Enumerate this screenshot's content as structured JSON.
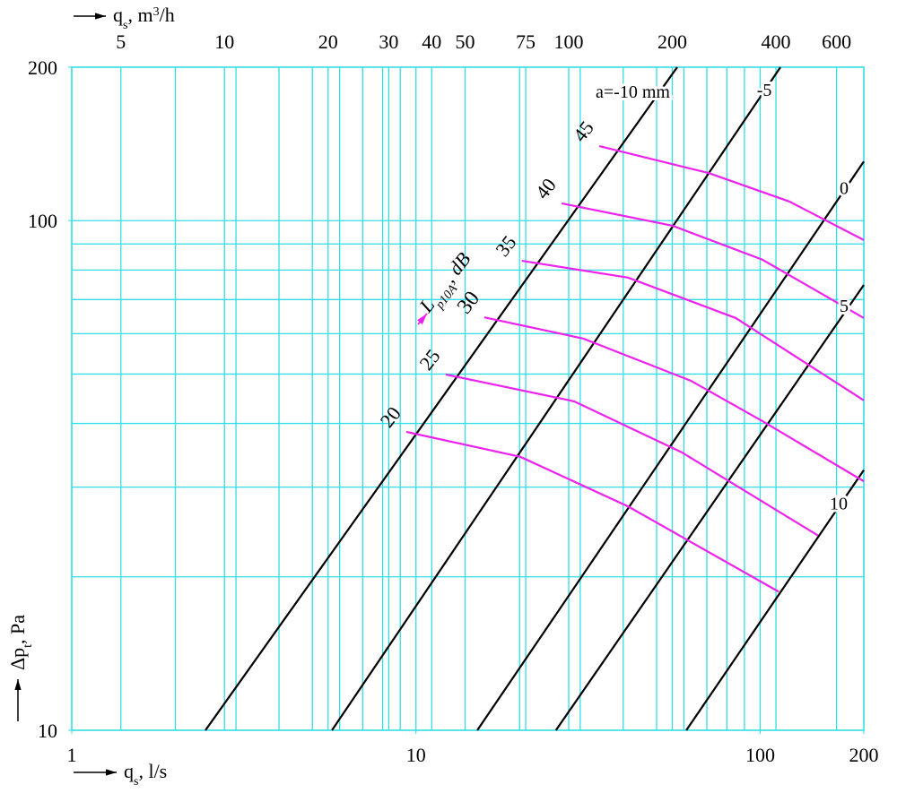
{
  "chart_data": {
    "type": "line",
    "xscale": "log",
    "yscale": "log",
    "xlim": [
      1,
      200
    ],
    "ylim": [
      10,
      200
    ],
    "x2lim": [
      3.6,
      720
    ],
    "xticks": [
      1,
      10,
      100,
      200
    ],
    "x2ticks": [
      5,
      10,
      20,
      30,
      40,
      50,
      75,
      100,
      200,
      400,
      600
    ],
    "yticks": [
      10,
      100,
      200
    ],
    "xgrid": [
      2,
      3,
      4,
      5,
      6,
      7,
      8,
      9,
      10,
      20,
      30,
      40,
      50,
      60,
      70,
      80,
      90,
      100
    ],
    "ygrid": [
      20,
      30,
      40,
      50,
      60,
      70,
      80,
      90,
      100
    ],
    "grid_color": "#33dde6",
    "x_label": {
      "main": "q",
      "sub": "s",
      "rest": ", l/s"
    },
    "x2_label": {
      "main": "q",
      "sub": "s",
      "rest": ", m",
      "sup": "3",
      "tail": "/h"
    },
    "y_label": {
      "main": "Δp",
      "sub": "t",
      "rest": ", Pa"
    },
    "annotation": {
      "main": "L",
      "sub": "p10A",
      "rest": ", dB",
      "color": "#ee22ee"
    },
    "series": [
      {
        "name": "a=-10 mm",
        "color": "#000000",
        "x": [
          2.445,
          57.4
        ],
        "y": [
          10,
          200
        ]
      },
      {
        "name": "-5",
        "color": "#000000",
        "x": [
          5.7,
          114.5
        ],
        "y": [
          10,
          200
        ]
      },
      {
        "name": "0",
        "color": "#000000",
        "x": [
          15.07,
          200
        ],
        "y": [
          10,
          130.6
        ]
      },
      {
        "name": "5",
        "color": "#000000",
        "x": [
          25.5,
          200
        ],
        "y": [
          10,
          74.8
        ]
      },
      {
        "name": "10",
        "color": "#000000",
        "x": [
          61.0,
          200
        ],
        "y": [
          10,
          32.4
        ]
      },
      {
        "name": "45",
        "color": "#ee22ee",
        "x": [
          34.1,
          70.8,
          121.6,
          200
        ],
        "y": [
          140.0,
          124.0,
          109.0,
          91.6
        ]
      },
      {
        "name": "40",
        "color": "#ee22ee",
        "x": [
          26.5,
          55.7,
          101.6,
          200
        ],
        "y": [
          108.1,
          97.7,
          83.8,
          64.4
        ]
      },
      {
        "name": "35",
        "color": "#ee22ee",
        "x": [
          20.3,
          41.3,
          84.9,
          200
        ],
        "y": [
          83.4,
          77.3,
          64.4,
          44.4
        ]
      },
      {
        "name": "30",
        "color": "#ee22ee",
        "x": [
          15.8,
          30.6,
          62.9,
          101.6,
          200
        ],
        "y": [
          64.6,
          58.7,
          48.5,
          40.4,
          30.8
        ]
      },
      {
        "name": "25",
        "color": "#ee22ee",
        "x": [
          12.2,
          28.8,
          59.2,
          147.3
        ],
        "y": [
          49.9,
          44.2,
          35.1,
          24.1
        ]
      },
      {
        "name": "20",
        "color": "#ee22ee",
        "x": [
          9.38,
          20.1,
          41.3,
          113.2
        ],
        "y": [
          38.5,
          34.4,
          27.5,
          18.7
        ]
      }
    ]
  }
}
